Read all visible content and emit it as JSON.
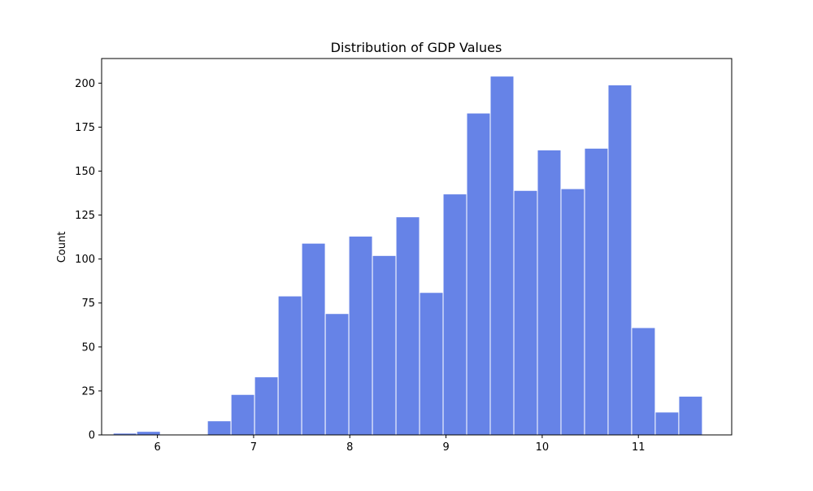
{
  "chart_data": {
    "type": "bar",
    "subtype": "histogram",
    "title": "Distribution of GDP Values",
    "xlabel": "",
    "ylabel": "Count",
    "xlim": [
      5.42,
      11.97
    ],
    "ylim": [
      0,
      214
    ],
    "x_ticks": [
      6,
      7,
      8,
      9,
      10,
      11
    ],
    "y_ticks": [
      0,
      25,
      50,
      75,
      100,
      125,
      150,
      175,
      200
    ],
    "bin_edges": [
      5.54,
      5.785,
      6.03,
      6.275,
      6.52,
      6.765,
      7.01,
      7.255,
      7.5,
      7.745,
      7.99,
      8.235,
      8.48,
      8.725,
      8.97,
      9.215,
      9.46,
      9.705,
      9.95,
      10.195,
      10.44,
      10.685,
      10.93,
      11.175,
      11.42,
      11.665
    ],
    "values": [
      1,
      2,
      0,
      0,
      8,
      23,
      33,
      79,
      109,
      69,
      113,
      102,
      124,
      81,
      137,
      183,
      204,
      139,
      162,
      140,
      163,
      199,
      61,
      13,
      22
    ],
    "bar_color": "#6683e7",
    "edge_color": "#ffffff",
    "grid": false,
    "legend": "none"
  }
}
